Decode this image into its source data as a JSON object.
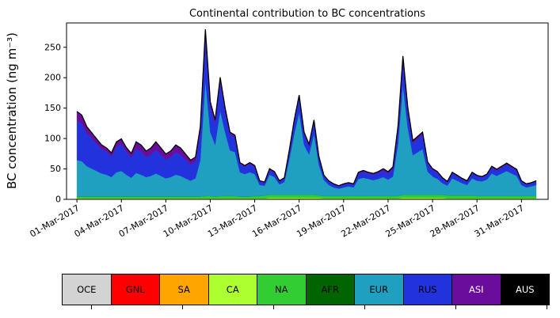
{
  "chart_data": {
    "type": "area",
    "stacked": true,
    "title": "Continental contribution to BC concentrations",
    "ylabel": "BC concentration (ng m⁻³)",
    "xlabel": "",
    "ylim": [
      0,
      290
    ],
    "yticks": [
      0,
      50,
      100,
      150,
      200,
      250
    ],
    "xlim": [
      -0.7,
      31.8
    ],
    "xtick_positions": [
      0,
      3,
      6,
      9,
      12,
      15,
      18,
      21,
      24,
      27,
      30
    ],
    "xtick_labels": [
      "01-Mar-2017",
      "04-Mar-2017",
      "07-Mar-2017",
      "10-Mar-2017",
      "13-Mar-2017",
      "16-Mar-2017",
      "19-Mar-2017",
      "22-Mar-2017",
      "25-Mar-2017",
      "28-Mar-2017",
      "31-Mar-2017"
    ],
    "outline_color": "#000000",
    "x_days": [
      0,
      0.33,
      0.67,
      1,
      1.33,
      1.67,
      2,
      2.33,
      2.67,
      3,
      3.33,
      3.67,
      4,
      4.33,
      4.67,
      5,
      5.33,
      5.67,
      6,
      6.33,
      6.67,
      7,
      7.33,
      7.67,
      8,
      8.33,
      8.67,
      9,
      9.33,
      9.67,
      10,
      10.33,
      10.67,
      11,
      11.33,
      11.67,
      12,
      12.33,
      12.67,
      13,
      13.33,
      13.67,
      14,
      14.33,
      14.67,
      15,
      15.33,
      15.67,
      16,
      16.33,
      16.67,
      17,
      17.33,
      17.67,
      18,
      18.33,
      18.67,
      19,
      19.33,
      19.67,
      20,
      20.33,
      20.67,
      21,
      21.33,
      21.67,
      22,
      22.33,
      22.67,
      23,
      23.33,
      23.67,
      24,
      24.33,
      24.67,
      25,
      25.33,
      25.67,
      26,
      26.33,
      26.67,
      27,
      27.33,
      27.67,
      28,
      28.33,
      28.67,
      29,
      29.33,
      29.67,
      30,
      30.33,
      30.67,
      31
    ],
    "series": [
      {
        "name": "OCE",
        "color": "#d3d3d3",
        "label_text_color": "#000000",
        "constant": 0.5
      },
      {
        "name": "GNL",
        "color": "#ff0000",
        "label_text_color": "#000000",
        "constant": 0
      },
      {
        "name": "SA",
        "color": "#ffa500",
        "label_text_color": "#000000",
        "constant": 0
      },
      {
        "name": "CA",
        "color": "#adff2f",
        "label_text_color": "#000000",
        "values": [
          1,
          1,
          1,
          1,
          1,
          1,
          1,
          1,
          1,
          1,
          1,
          1,
          1,
          1,
          1,
          1,
          1,
          1,
          1,
          1,
          1,
          1,
          1,
          1,
          1,
          1,
          1,
          1,
          1,
          1,
          1,
          1,
          1,
          1,
          1,
          1,
          1,
          1,
          1,
          2,
          2,
          2,
          2,
          2,
          2,
          2,
          2,
          2,
          2,
          2,
          1,
          1,
          1,
          1,
          1,
          1,
          1,
          1,
          1,
          1,
          1,
          1,
          1,
          1,
          1,
          1,
          2,
          2,
          2,
          2,
          2,
          2,
          2,
          2,
          2,
          1,
          1,
          1,
          1,
          1,
          1,
          1,
          1,
          1,
          1,
          1,
          1,
          1,
          1,
          1,
          1,
          1,
          1,
          1
        ]
      },
      {
        "name": "NA",
        "color": "#32cd32",
        "label_text_color": "#000000",
        "values": [
          3,
          3,
          3,
          3,
          3,
          3,
          3,
          3,
          3,
          3,
          3,
          3,
          3,
          3,
          3,
          3,
          3,
          3,
          3,
          3,
          3,
          3,
          3,
          3,
          3,
          3,
          4,
          4,
          3,
          4,
          4,
          4,
          4,
          3,
          3,
          3,
          4,
          4,
          5,
          5,
          5,
          5,
          5,
          5,
          5,
          5,
          5,
          5,
          5,
          4,
          4,
          4,
          4,
          4,
          4,
          4,
          4,
          4,
          4,
          4,
          4,
          4,
          4,
          4,
          4,
          4,
          5,
          5,
          5,
          5,
          5,
          5,
          5,
          5,
          5,
          5,
          5,
          5,
          5,
          5,
          5,
          4,
          4,
          4,
          4,
          4,
          4,
          4,
          4,
          4,
          4,
          4,
          4,
          4
        ]
      },
      {
        "name": "AFR",
        "color": "#006400",
        "label_text_color": "#000000",
        "constant": 0
      },
      {
        "name": "EUR",
        "color": "#20a0c0",
        "label_text_color": "#000000",
        "values": [
          60,
          58,
          50,
          46,
          42,
          38,
          36,
          32,
          40,
          42,
          36,
          31,
          39,
          36,
          32,
          34,
          38,
          34,
          30,
          32,
          36,
          34,
          30,
          26,
          30,
          60,
          190,
          105,
          85,
          140,
          105,
          75,
          72,
          40,
          37,
          40,
          36,
          18,
          16,
          33,
          29,
          17,
          21,
          58,
          100,
          135,
          82,
          66,
          100,
          50,
          26,
          18,
          14,
          12,
          14,
          16,
          14,
          28,
          30,
          28,
          26,
          28,
          31,
          27,
          32,
          85,
          180,
          110,
          65,
          70,
          75,
          38,
          30,
          26,
          19,
          16,
          28,
          24,
          20,
          17,
          28,
          25,
          24,
          27,
          37,
          33,
          37,
          41,
          37,
          33,
          18,
          14,
          16,
          18
        ]
      },
      {
        "name": "RUS",
        "color": "#2233dd",
        "label_text_color": "#000000",
        "values": [
          65,
          62,
          54,
          50,
          45,
          40,
          38,
          34,
          42,
          45,
          38,
          33,
          40,
          38,
          33,
          35,
          39,
          35,
          31,
          33,
          37,
          35,
          31,
          27,
          28,
          45,
          70,
          42,
          35,
          48,
          35,
          26,
          24,
          14,
          12,
          14,
          12,
          6,
          5,
          8,
          7,
          5,
          6,
          12,
          20,
          25,
          18,
          15,
          20,
          12,
          7,
          6,
          5,
          4,
          5,
          5,
          5,
          9,
          10,
          9,
          9,
          10,
          11,
          10,
          12,
          25,
          40,
          28,
          20,
          22,
          24,
          14,
          11,
          10,
          8,
          6,
          9,
          8,
          7,
          6,
          9,
          8,
          7,
          8,
          10,
          9,
          10,
          11,
          10,
          9,
          6,
          5,
          5,
          6
        ]
      },
      {
        "name": "ASI",
        "color": "#6a0d9c",
        "label_text_color": "#ffffff",
        "values": [
          15,
          14,
          11,
          9,
          8,
          7,
          6,
          6,
          8,
          8,
          7,
          7,
          11,
          11,
          10,
          11,
          13,
          11,
          9,
          10,
          12,
          11,
          9,
          7,
          7,
          10,
          14,
          8,
          6,
          7,
          5,
          4,
          4,
          2,
          2,
          2,
          2,
          1,
          1,
          2,
          2,
          1,
          1,
          3,
          3,
          4,
          3,
          2,
          3,
          2,
          1,
          1,
          1,
          1,
          1,
          1,
          1,
          2,
          2,
          2,
          2,
          2,
          3,
          3,
          4,
          5,
          8,
          6,
          4,
          4,
          4,
          2,
          2,
          2,
          1,
          1,
          1,
          1,
          1,
          1,
          1,
          1,
          1,
          1,
          2,
          2,
          2,
          2,
          2,
          2,
          1,
          1,
          1,
          1
        ]
      },
      {
        "name": "AUS",
        "color": "#000000",
        "label_text_color": "#ffffff",
        "constant": 0
      }
    ]
  }
}
